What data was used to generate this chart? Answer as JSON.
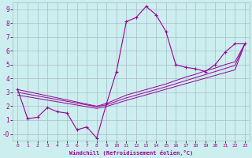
{
  "xlabel": "Windchill (Refroidissement éolien,°C)",
  "x_data": [
    0,
    1,
    2,
    3,
    4,
    5,
    6,
    7,
    8,
    9,
    10,
    11,
    12,
    13,
    14,
    15,
    16,
    17,
    18,
    19,
    20,
    21,
    22,
    23
  ],
  "y_main": [
    3.2,
    1.1,
    1.2,
    1.9,
    1.6,
    1.5,
    0.3,
    0.5,
    -0.3,
    2.2,
    4.5,
    8.1,
    8.4,
    9.2,
    8.6,
    7.4,
    5.0,
    4.8,
    4.7,
    4.5,
    5.0,
    5.9,
    6.5,
    6.5
  ],
  "y_line1": [
    3.2,
    3.05,
    2.9,
    2.75,
    2.6,
    2.45,
    2.3,
    2.15,
    2.0,
    2.2,
    2.5,
    2.8,
    3.0,
    3.2,
    3.4,
    3.6,
    3.85,
    4.1,
    4.3,
    4.55,
    4.75,
    5.0,
    5.2,
    6.5
  ],
  "y_line2": [
    3.0,
    2.87,
    2.74,
    2.61,
    2.48,
    2.35,
    2.22,
    2.09,
    1.96,
    2.1,
    2.35,
    2.6,
    2.8,
    3.0,
    3.2,
    3.4,
    3.62,
    3.84,
    4.06,
    4.28,
    4.5,
    4.72,
    4.94,
    6.5
  ],
  "y_line3": [
    2.8,
    2.68,
    2.56,
    2.44,
    2.32,
    2.2,
    2.08,
    1.96,
    1.84,
    1.98,
    2.2,
    2.42,
    2.62,
    2.82,
    3.02,
    3.22,
    3.42,
    3.62,
    3.82,
    4.02,
    4.22,
    4.42,
    4.62,
    6.5
  ],
  "ylim": [
    -0.5,
    9.5
  ],
  "xlim": [
    -0.5,
    23.5
  ],
  "yticks": [
    0,
    1,
    2,
    3,
    4,
    5,
    6,
    7,
    8,
    9
  ],
  "ytick_labels": [
    "-0",
    "1",
    "2",
    "3",
    "4",
    "5",
    "6",
    "7",
    "8",
    "9"
  ],
  "line_color": "#990099",
  "bg_color": "#cceeee",
  "grid_color": "#aabbcc"
}
